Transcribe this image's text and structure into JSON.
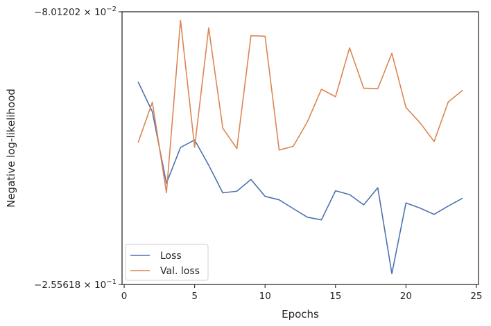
{
  "chart_data": {
    "type": "line",
    "title": "",
    "xlabel": "Epochs",
    "ylabel": "Negative log-likelihood",
    "x": [
      1,
      2,
      3,
      4,
      5,
      6,
      7,
      8,
      9,
      10,
      11,
      12,
      13,
      14,
      15,
      16,
      17,
      18,
      19,
      20,
      21,
      22,
      23,
      24
    ],
    "xlim": [
      -0.15,
      25.15
    ],
    "xticks": [
      0,
      5,
      10,
      15,
      20,
      25
    ],
    "xtick_labels": [
      "0",
      "5",
      "10",
      "15",
      "20",
      "25"
    ],
    "y_scale": "log",
    "y_inverted": true,
    "y_value_sign": "negative",
    "ylim": [
      -0.0801202,
      -0.255618
    ],
    "ytick_labels": [
      {
        "mantissa": "−8.01202",
        "base": "10",
        "exponent": "−2",
        "value": -0.0801202
      },
      {
        "mantissa": "−2.55618",
        "base": "10",
        "exponent": "−1",
        "value": -0.255618
      }
    ],
    "grid": false,
    "legend_position": "lower-left",
    "series": [
      {
        "name": "Loss",
        "color": "#4c72b0",
        "values": [
          -0.1081,
          -0.1226,
          -0.1662,
          -0.1427,
          -0.1382,
          -0.1539,
          -0.1731,
          -0.1719,
          -0.1635,
          -0.1757,
          -0.1783,
          -0.1851,
          -0.192,
          -0.1942,
          -0.1716,
          -0.1744,
          -0.1822,
          -0.1694,
          -0.2441,
          -0.1807,
          -0.1847,
          -0.1897,
          -0.1831,
          -0.1772
        ]
      },
      {
        "name": "Val. loss",
        "color": "#dd8452",
        "values": [
          -0.1395,
          -0.1177,
          -0.173,
          -0.0831,
          -0.1426,
          -0.0858,
          -0.1315,
          -0.1434,
          -0.0887,
          -0.0889,
          -0.1443,
          -0.142,
          -0.128,
          -0.1114,
          -0.115,
          -0.0934,
          -0.1109,
          -0.1111,
          -0.0956,
          -0.1204,
          -0.1285,
          -0.1391,
          -0.1176,
          -0.112
        ]
      }
    ]
  }
}
